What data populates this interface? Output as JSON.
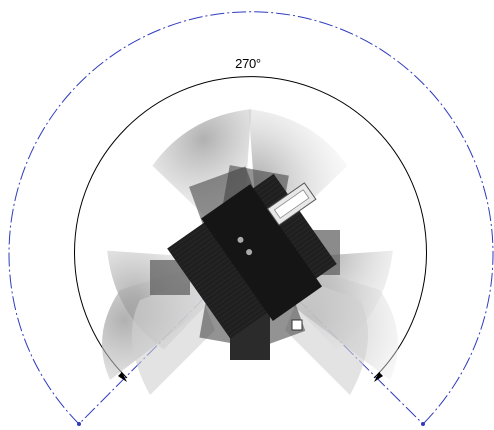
{
  "annotation": {
    "angle_label": "270°",
    "sweep_degrees": 270
  },
  "colors": {
    "outer_arc": "#2f3bbf",
    "inner_arc": "#000000",
    "speaker_dark": "#1a1a1a",
    "horn_fill": "#d9d9d9"
  },
  "icons": {
    "speaker": "speaker-array-icon",
    "arrow": "arrowhead-icon"
  }
}
